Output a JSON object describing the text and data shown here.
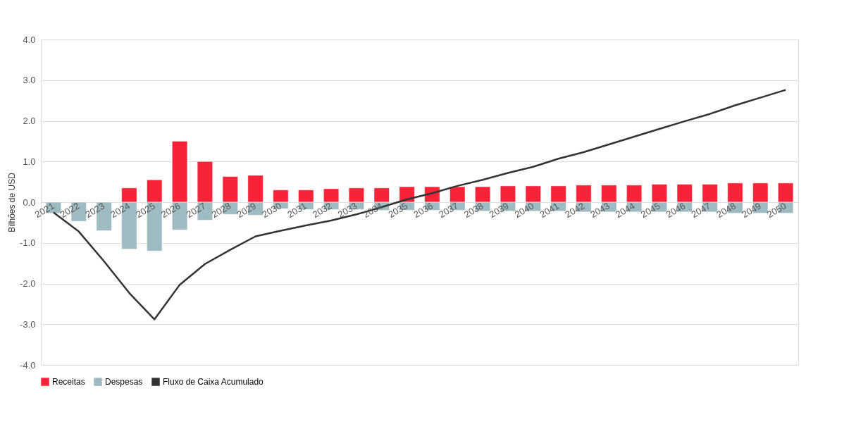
{
  "chart_data": {
    "type": "bar",
    "stacked": true,
    "ylabel": "Bilhões de USD",
    "categories": [
      "2021",
      "2022",
      "2023",
      "2024",
      "2025",
      "2026",
      "2027",
      "2028",
      "2029",
      "2030",
      "2031",
      "2032",
      "2033",
      "2034",
      "2035",
      "2036",
      "2037",
      "2038",
      "2039",
      "2040",
      "2041",
      "2042",
      "2043",
      "2044",
      "2045",
      "2046",
      "2047",
      "2048",
      "2049",
      "2050"
    ],
    "series": [
      {
        "name": "Receitas",
        "color": "#f72338",
        "values": [
          null,
          null,
          null,
          0.35,
          0.55,
          1.5,
          1.0,
          0.63,
          0.66,
          0.3,
          0.3,
          0.33,
          0.35,
          0.35,
          0.38,
          0.38,
          0.38,
          0.38,
          0.4,
          0.4,
          0.4,
          0.42,
          0.42,
          0.42,
          0.44,
          0.44,
          0.44,
          0.47,
          0.47,
          0.47
        ]
      },
      {
        "name": "Despesas",
        "color": "#9fbbc2",
        "values": [
          -0.27,
          -0.47,
          -0.7,
          -1.15,
          -1.2,
          -0.68,
          -0.44,
          -0.3,
          -0.32,
          -0.16,
          -0.18,
          -0.18,
          -0.18,
          -0.2,
          -0.2,
          -0.2,
          -0.2,
          -0.22,
          -0.22,
          -0.22,
          -0.22,
          -0.24,
          -0.24,
          -0.24,
          -0.24,
          -0.24,
          -0.24,
          -0.27,
          -0.27,
          -0.27
        ]
      },
      {
        "name": "Fluxo de Caixa Acumulado",
        "color": "#333333",
        "type": "line",
        "values": [
          -0.25,
          -0.72,
          -1.45,
          -2.23,
          -2.88,
          -2.03,
          -1.52,
          -1.17,
          -0.84,
          -0.7,
          -0.57,
          -0.45,
          -0.3,
          -0.12,
          0.07,
          0.22,
          0.4,
          0.55,
          0.72,
          0.87,
          1.07,
          1.23,
          1.42,
          1.61,
          1.8,
          1.99,
          2.17,
          2.38,
          2.57,
          2.76
        ]
      }
    ],
    "ylim": [
      -4.0,
      4.0
    ],
    "yticks": [
      {
        "value": -4,
        "label": "-4.0"
      },
      {
        "value": -3,
        "label": "-3.0"
      },
      {
        "value": -2,
        "label": "-2.0"
      },
      {
        "value": -1,
        "label": "-1.0"
      },
      {
        "value": 0,
        "label": "0.0"
      },
      {
        "value": 1,
        "label": "1.0"
      },
      {
        "value": 2,
        "label": "2.0"
      },
      {
        "value": 3,
        "label": "3.0"
      },
      {
        "value": 4,
        "label": "4.0"
      }
    ],
    "grid": "y",
    "legend": "bottom",
    "marker": "none",
    "line_style": "solid"
  }
}
